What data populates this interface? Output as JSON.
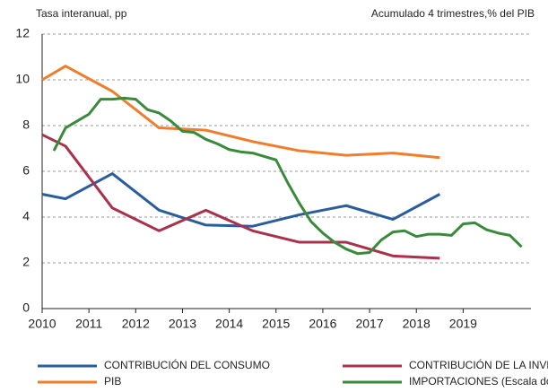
{
  "chart_data": {
    "type": "line",
    "annotations": [
      "Tasa interanual, pp",
      "Acumulado 4 trimestres,% del PIB"
    ],
    "xlim": [
      2010,
      2020.45
    ],
    "xticks": [
      2010,
      2011,
      2012,
      2013,
      2014,
      2015,
      2016,
      2017,
      2018,
      2019
    ],
    "ylim": [
      0,
      12
    ],
    "yticks": [
      0,
      2,
      4,
      6,
      8,
      10,
      12
    ],
    "grid": true,
    "legend": "bottom",
    "series": [
      {
        "name": "CONTRIBUCIÓN DEL CONSUMO",
        "color": "#2b5c9c",
        "x": [
          2010,
          2010.5,
          2011.5,
          2012.5,
          2013.5,
          2014.5,
          2015.5,
          2016.5,
          2017.5,
          2018.5
        ],
        "values": [
          5.0,
          4.8,
          5.9,
          4.3,
          3.65,
          3.6,
          4.1,
          4.5,
          3.9,
          5.0
        ]
      },
      {
        "name": "CONTRIBUCIÓN DE LA INVERSIÓN",
        "color": "#a8324c",
        "x": [
          2010,
          2010.5,
          2011.5,
          2012.5,
          2013.5,
          2014.5,
          2015.5,
          2016.5,
          2017.5,
          2018.5
        ],
        "values": [
          7.6,
          7.1,
          4.4,
          3.4,
          4.3,
          3.4,
          2.9,
          2.9,
          2.3,
          2.2
        ]
      },
      {
        "name": "PIB",
        "color": "#f07d2c",
        "x": [
          2010,
          2010.5,
          2011.5,
          2012.5,
          2013.5,
          2014.5,
          2015.5,
          2016.5,
          2017.5,
          2018.5
        ],
        "values": [
          10.0,
          10.6,
          9.5,
          7.9,
          7.8,
          7.3,
          6.9,
          6.7,
          6.8,
          6.6
        ]
      },
      {
        "name": "IMPORTACIONES (Escala dcha.)",
        "color": "#3a8a3c",
        "x": [
          2010.25,
          2010.5,
          2010.75,
          2011,
          2011.25,
          2011.5,
          2011.75,
          2012,
          2012.25,
          2012.5,
          2012.75,
          2013,
          2013.25,
          2013.5,
          2013.75,
          2014,
          2014.25,
          2014.5,
          2014.75,
          2015,
          2015.25,
          2015.5,
          2015.75,
          2016,
          2016.25,
          2016.5,
          2016.75,
          2017,
          2017.25,
          2017.5,
          2017.75,
          2018,
          2018.25,
          2018.5,
          2018.75,
          2019,
          2019.25,
          2019.5,
          2019.75,
          2020,
          2020.25
        ],
        "values": [
          6.9,
          7.9,
          8.2,
          8.5,
          9.15,
          9.15,
          9.2,
          9.15,
          8.7,
          8.55,
          8.2,
          7.75,
          7.7,
          7.4,
          7.2,
          6.95,
          6.85,
          6.8,
          6.65,
          6.5,
          5.5,
          4.6,
          3.8,
          3.3,
          2.9,
          2.6,
          2.4,
          2.45,
          3.0,
          3.35,
          3.4,
          3.15,
          3.25,
          3.25,
          3.2,
          3.7,
          3.75,
          3.45,
          3.3,
          3.2,
          2.7
        ]
      }
    ]
  }
}
